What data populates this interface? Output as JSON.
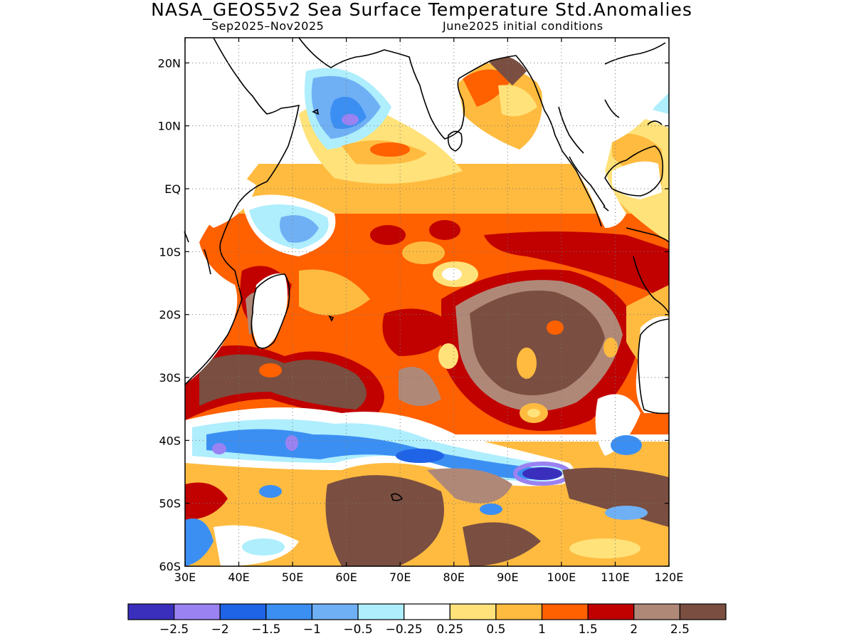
{
  "title": "NASA_GEOS5v2 Sea Surface Temperature Std.Anomalies",
  "subtitle_left": "Sep2025–Nov2025",
  "subtitle_right": "June2025 initial conditions",
  "map": {
    "lon_labels": [
      "30E",
      "40E",
      "50E",
      "60E",
      "70E",
      "80E",
      "90E",
      "100E",
      "110E",
      "120E"
    ],
    "lat_labels": [
      "20N",
      "10N",
      "EQ",
      "10S",
      "20S",
      "30S",
      "40S",
      "50S",
      "60S"
    ],
    "lon_range": [
      30,
      120
    ],
    "lat_range": [
      -60,
      24
    ],
    "grid": "dotted",
    "land_color": "#ffffff"
  },
  "colorbar": {
    "colors": [
      "#3a2fbd",
      "#9a82f2",
      "#1f63e6",
      "#3c8ff2",
      "#6fb0f5",
      "#aeeefd",
      "#ffffff",
      "#ffe27a",
      "#ffbb40",
      "#ff6000",
      "#c10000",
      "#b08878",
      "#7a4e40"
    ],
    "labels": [
      "−2.5",
      "−2",
      "−1.5",
      "−1",
      "−0.5",
      "−0.25",
      "0.25",
      "0.5",
      "1",
      "1.5",
      "2",
      "2.5"
    ]
  }
}
